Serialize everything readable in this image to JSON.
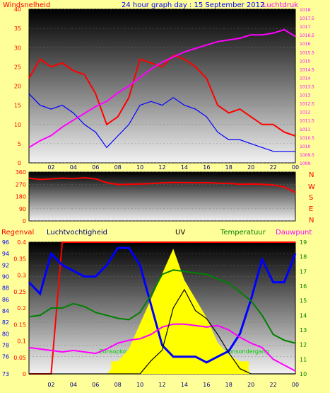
{
  "header": {
    "title": "24 hour graph day : 15 September 2012",
    "left_label": "Windsnelheid",
    "right_label": "Luchtdruk"
  },
  "bottom_labels": {
    "rain": "Regenval",
    "humidity": "Luchtvochtigheid",
    "uv": "UV",
    "temperature": "Temperatuur",
    "dewpoint": "Dauwpunt"
  },
  "annotations": {
    "sunrise": "Zonsopkomst",
    "sunset": "Zonsondergang"
  },
  "direction_labels": [
    "N",
    "W",
    "S",
    "E",
    "N"
  ],
  "colors": {
    "background": "#ffff99",
    "wind_gust": "#ff0000",
    "wind_avg": "#0000ff",
    "pressure": "#ff00ff",
    "direction": "#ff0000",
    "humidity": "#0000ff",
    "temperature": "#008000",
    "dewpoint": "#ff00ff",
    "uv": "#000000",
    "solar": "#ffff00",
    "rain": "#ff0000"
  },
  "x_ticks": [
    "02",
    "04",
    "06",
    "08",
    "10",
    "12",
    "14",
    "16",
    "18",
    "20",
    "22",
    "00"
  ],
  "chart_data": [
    {
      "type": "line",
      "name": "wind-and-pressure",
      "x": [
        0,
        1,
        2,
        3,
        4,
        5,
        6,
        7,
        8,
        9,
        10,
        11,
        12,
        13,
        14,
        15,
        16,
        17,
        18,
        19,
        20,
        21,
        22,
        23,
        24
      ],
      "ylim": [
        0,
        40
      ],
      "y2lim": [
        1009,
        1018
      ],
      "y_ticks": [
        0,
        5,
        10,
        15,
        20,
        25,
        30,
        35,
        40
      ],
      "y2_ticks": [
        "1009",
        "1009.5",
        "1010",
        "1010.5",
        "1011",
        "1011.5",
        "1012",
        "1012.5",
        "1013",
        "1013.5",
        "1014",
        "1014.5",
        "1015",
        "1015.5",
        "1016",
        "1016.5",
        "1017",
        "1017.5",
        "1018"
      ],
      "series": [
        {
          "name": "Windsnelheid",
          "values": [
            22,
            27,
            25,
            26,
            24,
            23,
            18,
            10,
            12,
            17,
            27,
            26,
            25,
            28,
            27,
            25,
            22,
            15,
            13,
            14,
            12,
            10,
            10,
            8,
            7
          ]
        },
        {
          "name": "average",
          "values": [
            18,
            15,
            14,
            15,
            13,
            10,
            8,
            4,
            7,
            10,
            15,
            16,
            15,
            17,
            15,
            14,
            12,
            8,
            6,
            6,
            5,
            4,
            3,
            3,
            3
          ]
        },
        {
          "name": "Luchtdruk",
          "values": [
            1009.9,
            1010.3,
            1010.6,
            1011.1,
            1011.5,
            1011.9,
            1012.3,
            1012.6,
            1013.1,
            1013.5,
            1014.0,
            1014.5,
            1014.9,
            1015.2,
            1015.5,
            1015.7,
            1015.9,
            1016.1,
            1016.2,
            1016.3,
            1016.5,
            1016.5,
            1016.6,
            1016.8,
            1016.4
          ]
        }
      ]
    },
    {
      "type": "line",
      "name": "wind-direction",
      "x": [
        0,
        1,
        2,
        3,
        4,
        5,
        6,
        7,
        8,
        9,
        10,
        11,
        12,
        13,
        14,
        15,
        16,
        17,
        18,
        19,
        20,
        21,
        22,
        23,
        24
      ],
      "ylim": [
        0,
        360
      ],
      "y_ticks": [
        0,
        90,
        180,
        270,
        360
      ],
      "series": [
        {
          "name": "direction",
          "values": [
            315,
            305,
            310,
            315,
            312,
            318,
            310,
            282,
            268,
            270,
            272,
            275,
            280,
            283,
            282,
            280,
            282,
            278,
            277,
            270,
            272,
            270,
            265,
            250,
            210
          ]
        }
      ]
    },
    {
      "type": "line",
      "name": "rain-humidity-uv-temp",
      "x": [
        0,
        1,
        2,
        3,
        4,
        5,
        6,
        7,
        8,
        9,
        10,
        11,
        12,
        13,
        14,
        15,
        16,
        17,
        18,
        19,
        20,
        21,
        22,
        23,
        24
      ],
      "ylim_humidity": [
        73,
        96
      ],
      "y_ticks_humidity": [
        73,
        76,
        78,
        80,
        82,
        84,
        86,
        88,
        90,
        92,
        94,
        96
      ],
      "ylim_rain": [
        0,
        0.4
      ],
      "y_ticks_rain": [
        "0",
        "0.05",
        "0.1",
        "0.15",
        "0.2",
        "0.25",
        "0.3",
        "0.35",
        "0.4"
      ],
      "ylim_temp": [
        10,
        19
      ],
      "y_ticks_temp": [
        10,
        11,
        12,
        13,
        14,
        15,
        16,
        17,
        18,
        19
      ],
      "series": [
        {
          "name": "Regenval",
          "values": [
            0,
            0,
            0,
            0.4,
            0.4,
            0.4,
            0.4,
            0.4,
            0.4,
            0.4,
            0.4,
            0.4,
            0.4,
            0.4,
            0.4,
            0.4,
            0.4,
            0.4,
            0.4,
            0.4,
            0.4,
            0.4,
            0.4,
            0.4,
            0.4
          ]
        },
        {
          "name": "Luchtvochtigheid",
          "values": [
            89,
            87,
            94,
            92,
            91,
            90,
            90,
            92,
            95,
            95,
            92,
            85,
            78,
            76,
            76,
            76,
            75,
            76,
            77,
            80,
            86,
            93,
            89,
            89,
            94
          ]
        },
        {
          "name": "Temperatuur",
          "values": [
            13.9,
            14,
            14.5,
            14.5,
            14.8,
            14.6,
            14.2,
            14,
            13.8,
            13.7,
            14.2,
            15.4,
            16.8,
            17.1,
            17.0,
            16.9,
            16.8,
            16.5,
            16.2,
            15.6,
            15,
            14,
            12.7,
            12.3,
            12.1
          ]
        },
        {
          "name": "Dauwpunt",
          "values": [
            11.8,
            11.7,
            11.6,
            11.5,
            11.6,
            11.5,
            11.4,
            11.7,
            12.1,
            12.3,
            12.4,
            12.7,
            13.2,
            13.4,
            13.4,
            13.3,
            13.2,
            13.3,
            13.0,
            12.5,
            12.1,
            11.8,
            11.0,
            10.6,
            10.2
          ]
        },
        {
          "name": "UV",
          "values": [
            0,
            0,
            0,
            0,
            0,
            0,
            0,
            0,
            0,
            0,
            0,
            0.5,
            0.9,
            2.5,
            3.2,
            2.4,
            2.1,
            1.5,
            0.8,
            0.2,
            0,
            0,
            0,
            0,
            0
          ]
        },
        {
          "name": "solar",
          "values": [
            0,
            0,
            0,
            0,
            0,
            0,
            0,
            0,
            2,
            4,
            8,
            12,
            16,
            20,
            15,
            12,
            9,
            5,
            3,
            2,
            0,
            0,
            0,
            0,
            0
          ]
        }
      ],
      "sunrise_x": 7.4,
      "sunset_x": 19.8
    }
  ]
}
